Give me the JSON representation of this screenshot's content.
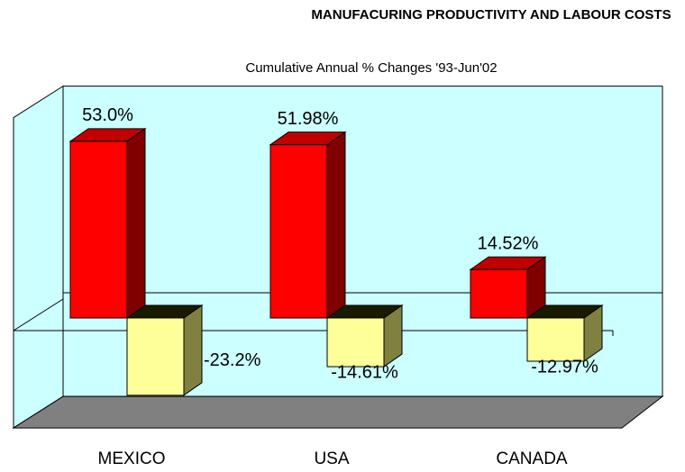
{
  "chart_data": {
    "type": "bar3d",
    "title": "MANUFACURING PRODUCTIVITY AND LABOUR COSTS",
    "subtitle": "Cumulative Annual % Changes '93-Jun'02",
    "categories": [
      "MEXICO",
      "USA",
      "CANADA"
    ],
    "series": [
      {
        "color": "#ff0000",
        "values": [
          53.0,
          51.98,
          14.52
        ],
        "value_labels": [
          "53.0%",
          "51.98%",
          "14.52%"
        ]
      },
      {
        "color": "#ffff99",
        "values": [
          -23.2,
          -14.61,
          -12.97
        ],
        "value_labels": [
          "-23.2%",
          "-14.61%",
          "-12.97%"
        ]
      }
    ],
    "ylim": [
      -33,
      62
    ],
    "wall_color": "#ccffff",
    "floor_color": "#808080"
  }
}
